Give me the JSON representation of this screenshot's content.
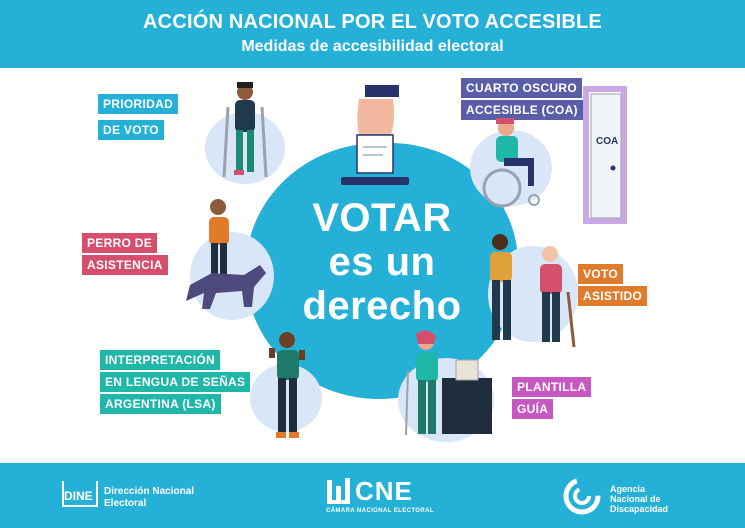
{
  "header": {
    "title": "ACCIÓN NACIONAL POR EL VOTO ACCESIBLE",
    "subtitle": "Medidas de accesibilidad electoral"
  },
  "center": {
    "line1": "VOTAR",
    "line2": "es un",
    "line3": "derecho"
  },
  "labels": {
    "prioridad": [
      "PRIORIDAD",
      "DE VOTO"
    ],
    "perro": [
      "PERRO DE",
      "ASISTENCIA"
    ],
    "lsa": [
      "INTERPRETACIÓN",
      "EN LENGUA DE SEÑAS",
      "ARGENTINA (LSA)"
    ],
    "coa": [
      "CUARTO OSCURO",
      "ACCESIBLE (COA)"
    ],
    "asistido": [
      "VOTO",
      "ASISTIDO"
    ],
    "plantilla": [
      "PLANTILLA",
      "GUÍA"
    ]
  },
  "door_sign": "COA",
  "footer": {
    "dine_box": "DINE",
    "dine_label": "Dirección Nacional Electoral",
    "cne_logo": "CNE",
    "cne_sub": "CÁMARA NACIONAL ELECTORAL",
    "andis_label": "Agencia Nacional de Discapacidad"
  },
  "colors": {
    "brand_blue": "#25b0d8",
    "label_red": "#d54f6c",
    "label_teal": "#1fb7a8",
    "label_purple": "#5a5ea9",
    "label_orange": "#e07b2c",
    "label_pink": "#c757c1"
  }
}
